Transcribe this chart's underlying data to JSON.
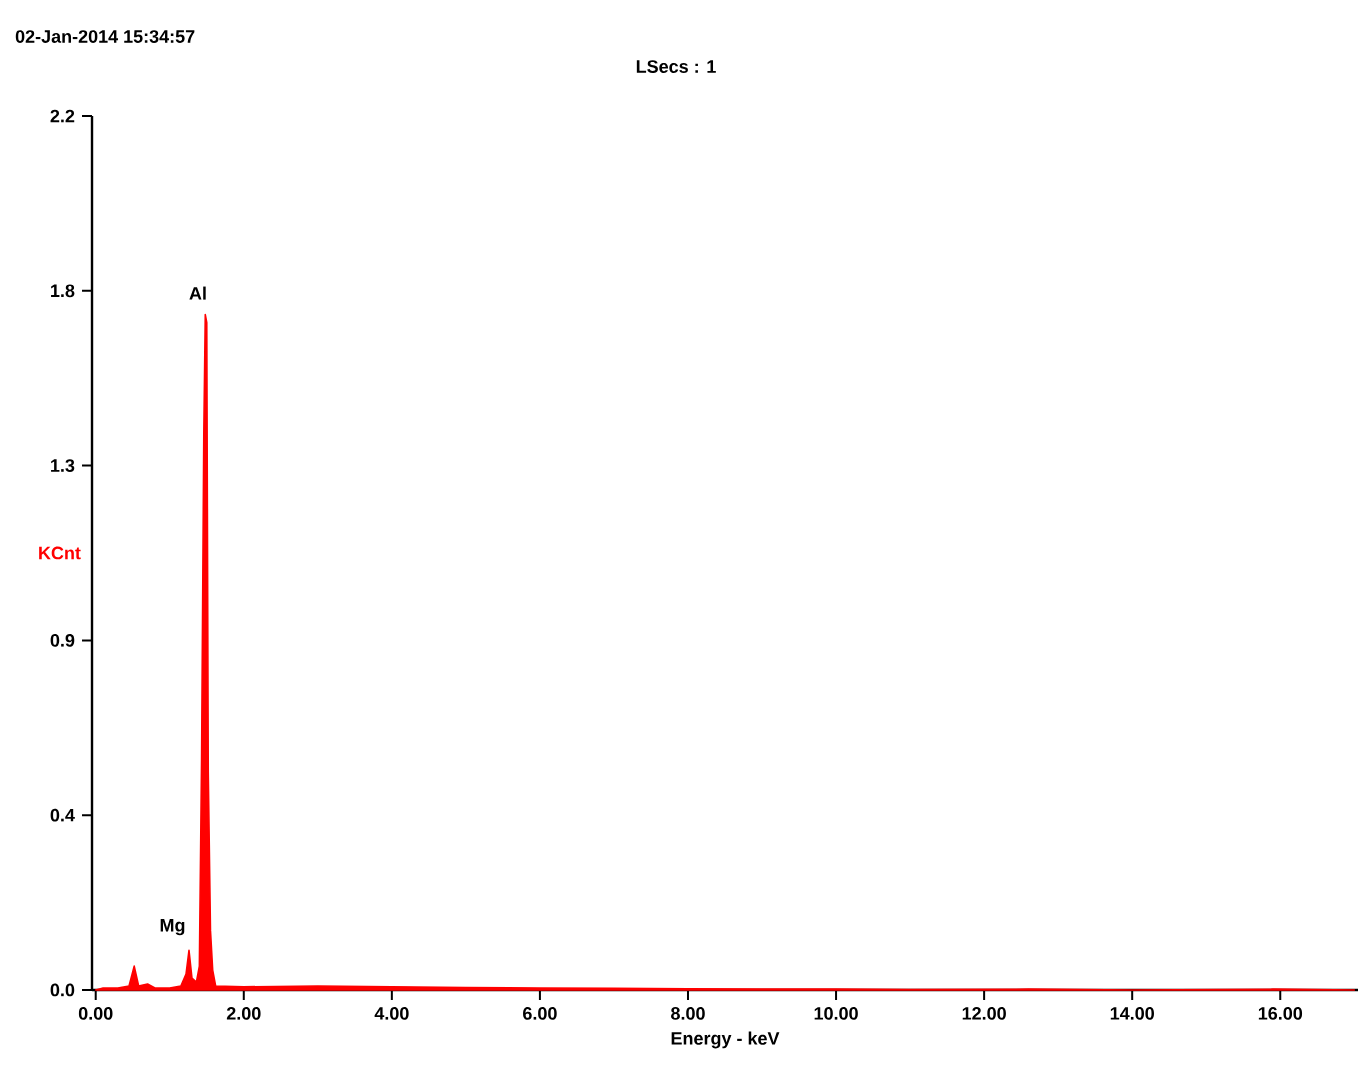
{
  "chart_data": {
    "type": "area",
    "title": "02-Jan-2014 15:34:57",
    "subtitle": "LSecs : 1",
    "xlabel": "Energy - keV",
    "ylabel": "KCnt",
    "annotations": [
      {
        "text": "Al",
        "x": 1.49,
        "y": 1.72
      },
      {
        "text": "Mg",
        "x": 1.2,
        "y": 0.12
      }
    ],
    "series": [
      {
        "color": "#ff0000",
        "x": [
          0.0,
          0.1,
          0.3,
          0.45,
          0.52,
          0.58,
          0.7,
          0.8,
          1.0,
          1.15,
          1.22,
          1.26,
          1.3,
          1.36,
          1.4,
          1.43,
          1.46,
          1.48,
          1.5,
          1.52,
          1.55,
          1.58,
          1.62,
          2.0,
          3.0,
          4.0,
          5.0,
          6.0,
          7.0,
          8.0,
          9.0,
          10.0,
          11.0,
          12.6,
          14.0,
          15.9,
          17.0
        ],
        "values": [
          0,
          0.005,
          0.005,
          0.01,
          0.06,
          0.01,
          0.015,
          0.005,
          0.005,
          0.01,
          0.04,
          0.1,
          0.03,
          0.02,
          0.06,
          0.58,
          1.4,
          1.7,
          1.68,
          0.55,
          0.15,
          0.05,
          0.01,
          0.008,
          0.01,
          0.008,
          0.006,
          0.005,
          0.004,
          0.003,
          0.002,
          0.002,
          0.001,
          0.002,
          0,
          0.002,
          0
        ]
      }
    ],
    "xlim": [
      -0.05,
      17.05
    ],
    "ylim": [
      0,
      2.2
    ],
    "xticks": [
      {
        "value": 0,
        "label": "0.00"
      },
      {
        "value": 2,
        "label": "2.00"
      },
      {
        "value": 4,
        "label": "4.00"
      },
      {
        "value": 6,
        "label": "6.00"
      },
      {
        "value": 8,
        "label": "8.00"
      },
      {
        "value": 10,
        "label": "10.00"
      },
      {
        "value": 12,
        "label": "12.00"
      },
      {
        "value": 14,
        "label": "14.00"
      },
      {
        "value": 16,
        "label": "16.00"
      }
    ],
    "yticks": [
      {
        "value": 0,
        "label": "0.0"
      },
      {
        "value": 0.44,
        "label": "0.4"
      },
      {
        "value": 0.88,
        "label": "0.9"
      },
      {
        "value": 1.32,
        "label": "1.3"
      },
      {
        "value": 1.76,
        "label": "1.8"
      },
      {
        "value": 2.2,
        "label": "2.2"
      }
    ]
  }
}
